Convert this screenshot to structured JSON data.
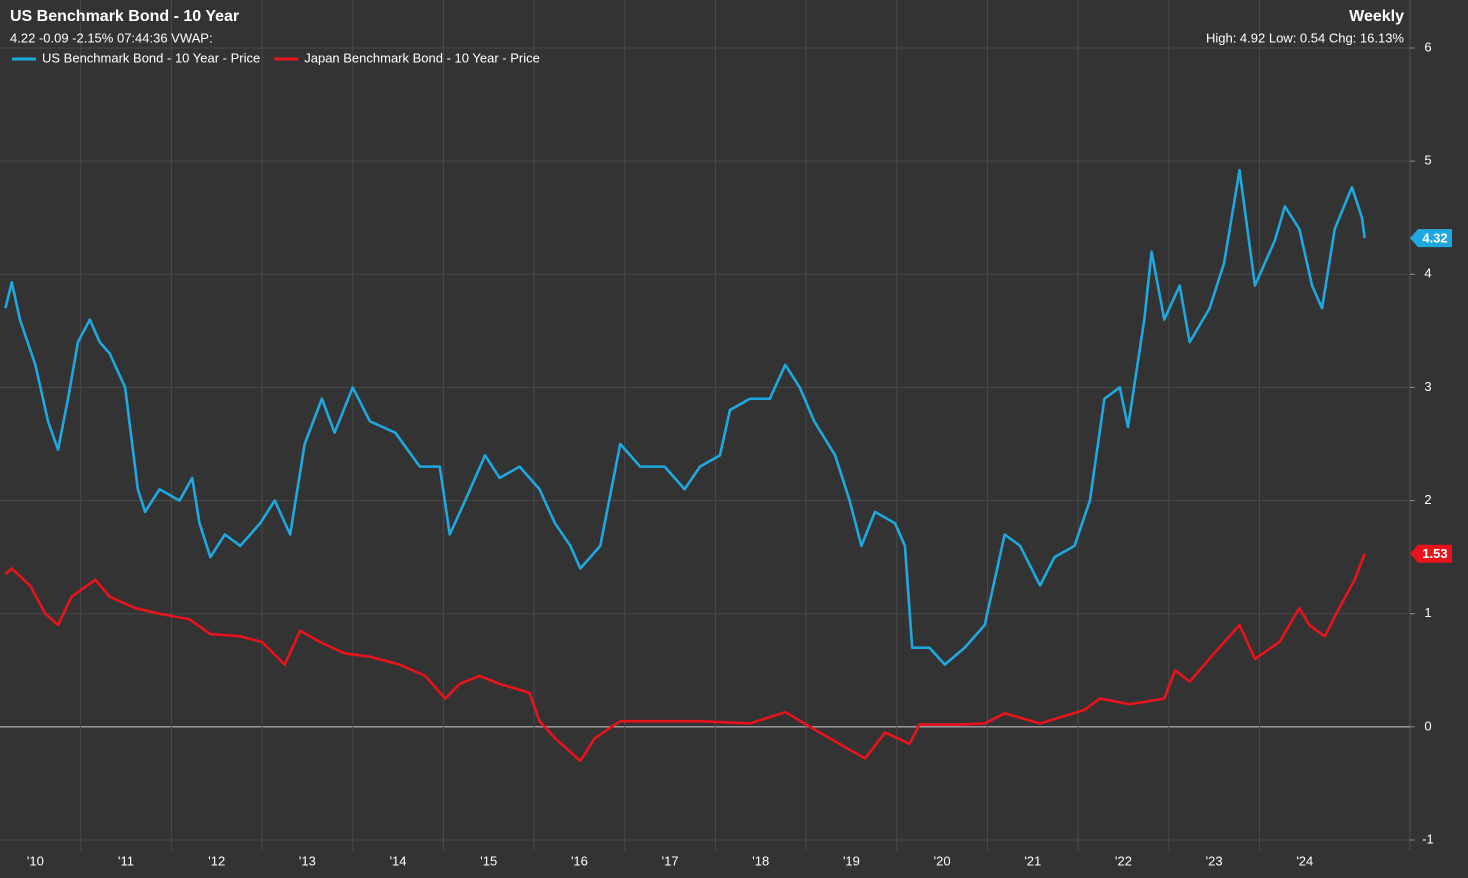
{
  "chart_data": {
    "type": "line",
    "title": "US Benchmark Bond - 10 Year",
    "subtitle": "4.22 -0.09 -2.15% 07:44:36 VWAP:",
    "period": "Weekly",
    "stats": "High: 4.92 Low: 0.54 Chg: 16.13%",
    "xlim": [
      2010.11,
      2025.66
    ],
    "xticks": [
      {
        "value": 2010,
        "label": "'10"
      },
      {
        "value": 2011,
        "label": "'11"
      },
      {
        "value": 2012,
        "label": "'12"
      },
      {
        "value": 2013,
        "label": "'13"
      },
      {
        "value": 2014,
        "label": "'14"
      },
      {
        "value": 2015,
        "label": "'15"
      },
      {
        "value": 2016,
        "label": "'16"
      },
      {
        "value": 2017,
        "label": "'17"
      },
      {
        "value": 2018,
        "label": "'18"
      },
      {
        "value": 2019,
        "label": "'19"
      },
      {
        "value": 2020,
        "label": "'20"
      },
      {
        "value": 2021,
        "label": "'21"
      },
      {
        "value": 2022,
        "label": "'22"
      },
      {
        "value": 2023,
        "label": "'23"
      },
      {
        "value": 2024,
        "label": "'24"
      }
    ],
    "ylim": [
      -1,
      6
    ],
    "yticks": [
      -1,
      0,
      1,
      2,
      3,
      4,
      5,
      6
    ],
    "grid": true,
    "legend": "top-left",
    "series": [
      {
        "name": "US Benchmark Bond - 10 Year - Price",
        "color": "#1fa8e0",
        "x": [
          2010.17,
          2010.24,
          2010.33,
          2010.5,
          2010.64,
          2010.75,
          2010.86,
          2010.97,
          2011.1,
          2011.21,
          2011.32,
          2011.49,
          2011.63,
          2011.71,
          2011.87,
          2012.09,
          2012.23,
          2012.31,
          2012.43,
          2012.59,
          2012.76,
          2012.98,
          2013.14,
          2013.31,
          2013.47,
          2013.66,
          2013.8,
          2014.0,
          2014.19,
          2014.47,
          2014.74,
          2014.96,
          2015.07,
          2015.24,
          2015.46,
          2015.62,
          2015.84,
          2016.06,
          2016.23,
          2016.4,
          2016.51,
          2016.73,
          2016.95,
          2017.17,
          2017.44,
          2017.66,
          2017.83,
          2018.05,
          2018.16,
          2018.38,
          2018.6,
          2018.77,
          2018.93,
          2019.09,
          2019.32,
          2019.48,
          2019.61,
          2019.76,
          2019.98,
          2020.09,
          2020.17,
          2020.36,
          2020.53,
          2020.75,
          2020.97,
          2021.19,
          2021.36,
          2021.58,
          2021.74,
          2021.96,
          2022.13,
          2022.29,
          2022.46,
          2022.55,
          2022.73,
          2022.81,
          2022.95,
          2023.12,
          2023.23,
          2023.45,
          2023.61,
          2023.78,
          2023.95,
          2024.17,
          2024.28,
          2024.44,
          2024.58,
          2024.69,
          2024.83,
          2025.02,
          2025.13,
          2025.16
        ],
        "values": [
          3.7,
          3.93,
          3.6,
          3.2,
          2.7,
          2.45,
          2.9,
          3.4,
          3.6,
          3.4,
          3.3,
          3.0,
          2.1,
          1.9,
          2.1,
          2.0,
          2.2,
          1.8,
          1.5,
          1.7,
          1.6,
          1.8,
          2.0,
          1.7,
          2.5,
          2.9,
          2.6,
          3.0,
          2.7,
          2.6,
          2.3,
          2.3,
          1.7,
          2.0,
          2.4,
          2.2,
          2.3,
          2.1,
          1.8,
          1.6,
          1.4,
          1.6,
          2.5,
          2.3,
          2.3,
          2.1,
          2.3,
          2.4,
          2.8,
          2.9,
          2.9,
          3.2,
          3.0,
          2.7,
          2.4,
          2.0,
          1.6,
          1.9,
          1.8,
          1.6,
          0.7,
          0.7,
          0.55,
          0.7,
          0.9,
          1.7,
          1.6,
          1.25,
          1.5,
          1.6,
          2.0,
          2.9,
          3.0,
          2.65,
          3.6,
          4.2,
          3.6,
          3.9,
          3.4,
          3.7,
          4.1,
          4.92,
          3.9,
          4.3,
          4.6,
          4.4,
          3.9,
          3.7,
          4.4,
          4.77,
          4.5,
          4.32
        ]
      },
      {
        "name": "Japan Benchmark Bond - 10 Year - Price",
        "color": "#e8131b",
        "x": [
          2010.17,
          2010.24,
          2010.44,
          2010.61,
          2010.75,
          2010.9,
          2011.16,
          2011.32,
          2011.6,
          2011.87,
          2012.2,
          2012.43,
          2012.76,
          2013.0,
          2013.25,
          2013.42,
          2013.64,
          2013.91,
          2014.19,
          2014.52,
          2014.8,
          2015.02,
          2015.18,
          2015.4,
          2015.62,
          2015.95,
          2016.06,
          2016.23,
          2016.51,
          2016.67,
          2016.95,
          2017.28,
          2017.83,
          2018.38,
          2018.77,
          2019.15,
          2019.65,
          2019.87,
          2020.14,
          2020.25,
          2020.69,
          2020.97,
          2021.19,
          2021.58,
          2022.07,
          2022.24,
          2022.57,
          2022.95,
          2023.07,
          2023.23,
          2023.5,
          2023.78,
          2023.95,
          2024.22,
          2024.44,
          2024.55,
          2024.72,
          2024.88,
          2025.05,
          2025.16
        ],
        "values": [
          1.35,
          1.4,
          1.25,
          1.0,
          0.9,
          1.15,
          1.3,
          1.15,
          1.05,
          1.0,
          0.95,
          0.82,
          0.8,
          0.75,
          0.55,
          0.85,
          0.75,
          0.65,
          0.62,
          0.55,
          0.45,
          0.25,
          0.38,
          0.45,
          0.38,
          0.3,
          0.05,
          -0.1,
          -0.3,
          -0.1,
          0.05,
          0.05,
          0.05,
          0.03,
          0.13,
          -0.05,
          -0.28,
          -0.05,
          -0.15,
          0.02,
          0.02,
          0.03,
          0.12,
          0.03,
          0.15,
          0.25,
          0.2,
          0.25,
          0.5,
          0.4,
          0.65,
          0.9,
          0.6,
          0.75,
          1.05,
          0.9,
          0.8,
          1.05,
          1.3,
          1.53
        ]
      }
    ]
  }
}
